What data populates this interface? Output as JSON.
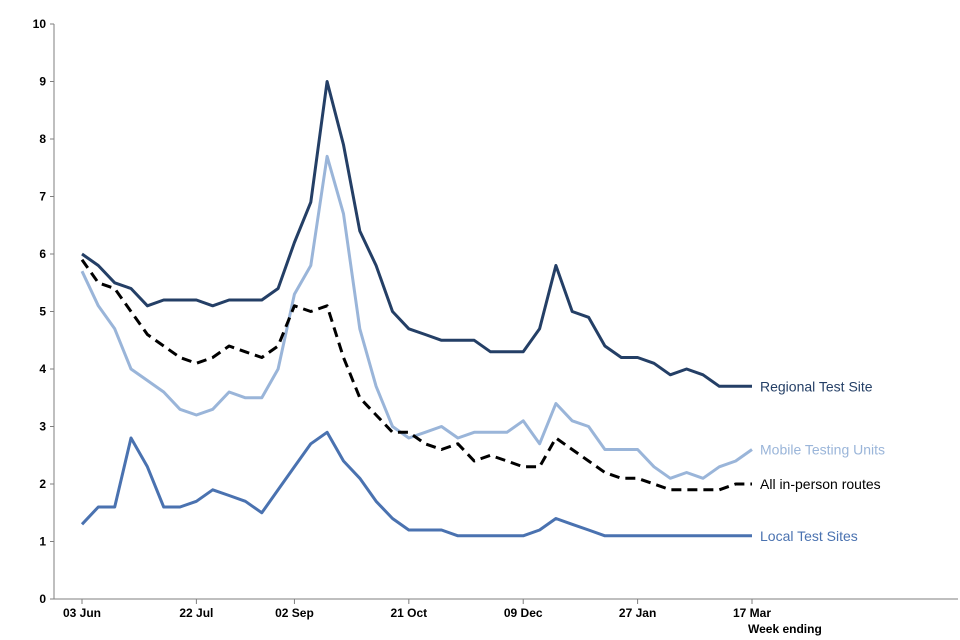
{
  "chart_data": {
    "type": "line",
    "title": "",
    "xlabel": "Week ending",
    "ylabel": "",
    "ylim": [
      0,
      10
    ],
    "yticks": [
      0,
      1,
      2,
      3,
      4,
      5,
      6,
      7,
      8,
      9,
      10
    ],
    "x_count": 42,
    "x_ticks": [
      {
        "index": 0,
        "label": "03 Jun"
      },
      {
        "index": 7,
        "label": "22 Jul"
      },
      {
        "index": 13,
        "label": "02 Sep"
      },
      {
        "index": 20,
        "label": "21 Oct"
      },
      {
        "index": 27,
        "label": "09 Dec"
      },
      {
        "index": 34,
        "label": "27 Jan"
      },
      {
        "index": 41,
        "label": "17 Mar"
      }
    ],
    "series": [
      {
        "name": "Regional Test Site",
        "color": "#243f66",
        "dash": "solid",
        "values": [
          6.0,
          5.8,
          5.5,
          5.4,
          5.1,
          5.2,
          5.2,
          5.2,
          5.1,
          5.2,
          5.2,
          5.2,
          5.4,
          6.2,
          6.9,
          9.0,
          7.9,
          6.4,
          5.8,
          5.0,
          4.7,
          4.6,
          4.5,
          4.5,
          4.5,
          4.3,
          4.3,
          4.3,
          4.7,
          5.8,
          5.0,
          4.9,
          4.4,
          4.2,
          4.2,
          4.1,
          3.9,
          4.0,
          3.9,
          3.7,
          3.7,
          3.7
        ]
      },
      {
        "name": "Mobile Testing Units",
        "color": "#9ab5d9",
        "dash": "solid",
        "values": [
          5.7,
          5.1,
          4.7,
          4.0,
          3.8,
          3.6,
          3.3,
          3.2,
          3.3,
          3.6,
          3.5,
          3.5,
          4.0,
          5.3,
          5.8,
          7.7,
          6.7,
          4.7,
          3.7,
          3.0,
          2.8,
          2.9,
          3.0,
          2.8,
          2.9,
          2.9,
          2.9,
          3.1,
          2.7,
          3.4,
          3.1,
          3.0,
          2.6,
          2.6,
          2.6,
          2.3,
          2.1,
          2.2,
          2.1,
          2.3,
          2.4,
          2.6
        ]
      },
      {
        "name": "All in-person routes",
        "color": "#000000",
        "dash": "dashed",
        "values": [
          5.9,
          5.5,
          5.4,
          5.0,
          4.6,
          4.4,
          4.2,
          4.1,
          4.2,
          4.4,
          4.3,
          4.2,
          4.4,
          5.1,
          5.0,
          5.1,
          4.2,
          3.5,
          3.2,
          2.9,
          2.9,
          2.7,
          2.6,
          2.7,
          2.4,
          2.5,
          2.4,
          2.3,
          2.3,
          2.8,
          2.6,
          2.4,
          2.2,
          2.1,
          2.1,
          2.0,
          1.9,
          1.9,
          1.9,
          1.9,
          2.0,
          2.0
        ]
      },
      {
        "name": "Local Test Sites",
        "color": "#4a72b0",
        "dash": "solid",
        "values": [
          1.3,
          1.6,
          1.6,
          2.8,
          2.3,
          1.6,
          1.6,
          1.7,
          1.9,
          1.8,
          1.7,
          1.5,
          1.9,
          2.3,
          2.7,
          2.9,
          2.4,
          2.1,
          1.7,
          1.4,
          1.2,
          1.2,
          1.2,
          1.1,
          1.1,
          1.1,
          1.1,
          1.1,
          1.2,
          1.4,
          1.3,
          1.2,
          1.1,
          1.1,
          1.1,
          1.1,
          1.1,
          1.1,
          1.1,
          1.1,
          1.1,
          1.1
        ]
      }
    ]
  }
}
